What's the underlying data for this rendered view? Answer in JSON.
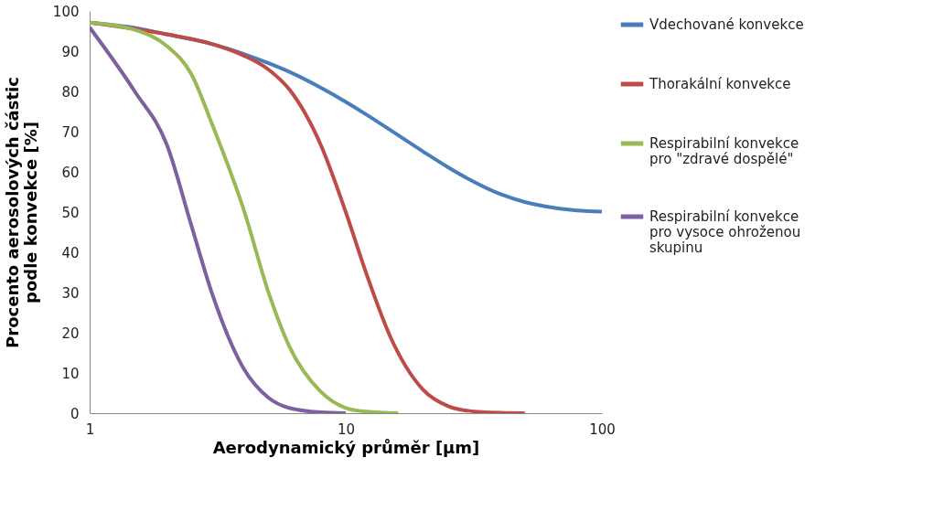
{
  "chart_data": {
    "type": "line",
    "xlabel": "Aerodynamický průměr [μm]",
    "ylabel": "Procento aerosolových částic\npodle konvekce [%]",
    "log": "x",
    "xlim": [
      1,
      100
    ],
    "xticks": [
      1,
      10,
      100
    ],
    "ylim": [
      0,
      100
    ],
    "yticks": [
      0,
      10,
      20,
      30,
      40,
      50,
      60,
      70,
      80,
      90,
      100
    ],
    "grid": false,
    "legend": "right",
    "line_style": "solid",
    "marker": "none",
    "series": [
      {
        "name": "Vdechované konvekce",
        "color": "#4a7ebb",
        "x": [
          1,
          1.5,
          2,
          2.5,
          3,
          4,
          5,
          6,
          8,
          10,
          12,
          15,
          20,
          25,
          30,
          40,
          50,
          60,
          80,
          100
        ],
        "values": [
          97.1,
          95.8,
          94.2,
          93.0,
          91.8,
          89.3,
          87.0,
          84.9,
          80.9,
          77.4,
          74.3,
          70.3,
          65.1,
          61.2,
          58.3,
          54.5,
          52.5,
          51.4,
          50.4,
          50.1
        ]
      },
      {
        "name": "Thorakální konvekce",
        "color": "#be4b48",
        "x": [
          1,
          2,
          3,
          4,
          5,
          6,
          8,
          10,
          12,
          15,
          20,
          25,
          30,
          40,
          50
        ],
        "values": [
          97.1,
          94.2,
          91.8,
          88.9,
          85.4,
          80.6,
          66.6,
          50.0,
          34.9,
          18.7,
          5.9,
          1.8,
          0.6,
          0.1,
          0
        ]
      },
      {
        "name": "Respirabilní konvekce\npro \"zdravé dospělé\"",
        "color": "#98b954",
        "x": [
          1,
          1.5,
          2,
          2.5,
          3,
          4,
          5,
          6,
          8,
          10,
          12,
          16
        ],
        "values": [
          97.1,
          95.3,
          91.3,
          84.2,
          72,
          50.5,
          29.9,
          16.8,
          5.3,
          1.3,
          0.4,
          0
        ]
      },
      {
        "name": "Respirabilní konvekce\npro vysoce ohroženou\nskupinu",
        "color": "#7d60a0",
        "x": [
          1,
          1.5,
          2,
          2.5,
          3,
          4,
          5,
          6,
          8,
          10
        ],
        "values": [
          95.9,
          80,
          66.8,
          46.5,
          29.9,
          11.0,
          3.8,
          1.3,
          0.2,
          0
        ]
      }
    ]
  }
}
